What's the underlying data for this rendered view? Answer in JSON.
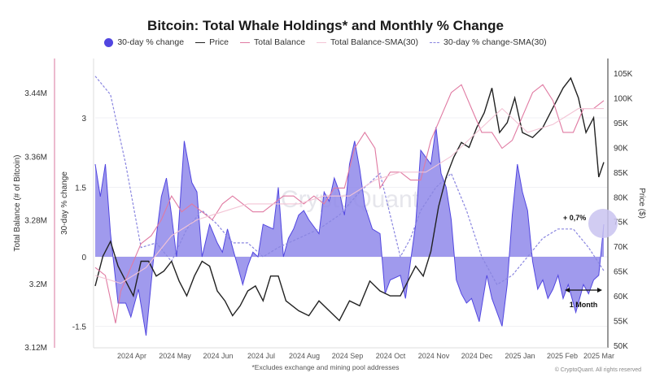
{
  "title": "Bitcoin: Total Whale Holdings* and Monthly % Change",
  "legend": [
    {
      "label": "30-day % change",
      "kind": "dot",
      "color": "#5146e0"
    },
    {
      "label": "Price",
      "kind": "line",
      "color": "#222222"
    },
    {
      "label": "Total Balance",
      "kind": "line",
      "color": "#e07aa2"
    },
    {
      "label": "Total Balance-SMA(30)",
      "kind": "line",
      "color": "#f3c4d5"
    },
    {
      "label": "30-day % change-SMA(30)",
      "kind": "dashed",
      "color": "#8a86e0"
    }
  ],
  "footnote": "*Excludes exchange and mining pool addresses",
  "copyright": "© CryptoQuant. All rights reserved",
  "watermark": "CryptoQuant",
  "annotations": {
    "change_label": "+ 0,7%",
    "period_label": "1 Month"
  },
  "chart_data": {
    "type": "line",
    "title": "Bitcoin: Total Whale Holdings* and Monthly % Change",
    "x_ticks": [
      "2024 Apr",
      "2024 May",
      "2024 Jun",
      "2024 Jul",
      "2024 Aug",
      "2024 Sep",
      "2024 Oct",
      "2024 Nov",
      "2024 Dec",
      "2025 Jan",
      "2025 Feb",
      "2025 Mar"
    ],
    "axes": {
      "balance": {
        "label": "Total Balance (# of Bitcoin)",
        "ticks": [
          "3.44M",
          "3.36M",
          "3.28M",
          "3.2M",
          "3.12M"
        ],
        "range": [
          3.12,
          3.47
        ],
        "unit": "M BTC"
      },
      "pct": {
        "label": "30-day % change",
        "ticks": [
          "3",
          "1.5",
          "0",
          "-1.5"
        ],
        "range": [
          -2.0,
          4.0
        ]
      },
      "price": {
        "label": "Price ($)",
        "ticks": [
          "105K",
          "100K",
          "95K",
          "90K",
          "85K",
          "80K",
          "75K",
          "70K",
          "65K",
          "60K",
          "55K",
          "50K"
        ],
        "range": [
          50,
          108
        ],
        "unit": "K USD"
      }
    },
    "x_range": [
      0,
      1
    ],
    "series": [
      {
        "name": "30-day % change",
        "axis": "pct",
        "type": "area",
        "color": "#5146e0",
        "x": [
          0,
          0.01,
          0.02,
          0.03,
          0.045,
          0.06,
          0.07,
          0.085,
          0.1,
          0.115,
          0.13,
          0.14,
          0.15,
          0.16,
          0.175,
          0.19,
          0.2,
          0.21,
          0.225,
          0.24,
          0.25,
          0.26,
          0.275,
          0.29,
          0.3,
          0.31,
          0.32,
          0.33,
          0.35,
          0.36,
          0.37,
          0.38,
          0.39,
          0.4,
          0.41,
          0.42,
          0.44,
          0.45,
          0.46,
          0.47,
          0.48,
          0.49,
          0.5,
          0.51,
          0.52,
          0.53,
          0.545,
          0.56,
          0.57,
          0.58,
          0.6,
          0.61,
          0.62,
          0.63,
          0.64,
          0.66,
          0.67,
          0.68,
          0.69,
          0.7,
          0.71,
          0.72,
          0.73,
          0.74,
          0.755,
          0.77,
          0.78,
          0.8,
          0.81,
          0.82,
          0.83,
          0.84,
          0.85,
          0.86,
          0.87,
          0.88,
          0.89,
          0.9,
          0.91,
          0.92,
          0.93,
          0.945,
          0.96,
          0.97,
          0.98,
          0.99,
          1.0
        ],
        "values": [
          2.0,
          1.3,
          2.0,
          0.5,
          -1.0,
          -1.0,
          -1.3,
          -0.7,
          -1.7,
          0.0,
          1.3,
          1.7,
          0.9,
          0.0,
          2.5,
          1.6,
          1.4,
          0.0,
          0.7,
          0.3,
          0.1,
          0.6,
          0.0,
          -0.6,
          -0.2,
          0.1,
          0.0,
          0.7,
          0.6,
          1.5,
          0.0,
          0.4,
          0.6,
          0.9,
          1.0,
          0.8,
          0.5,
          1.4,
          1.2,
          1.7,
          1.4,
          0.9,
          2.0,
          2.5,
          1.9,
          1.1,
          0.6,
          0.5,
          -0.8,
          -0.5,
          -0.4,
          -0.9,
          -0.1,
          0.7,
          2.3,
          2.0,
          2.8,
          1.8,
          1.5,
          0.8,
          -0.5,
          -0.8,
          -1.0,
          -0.9,
          -1.4,
          -0.4,
          -0.9,
          -1.5,
          -0.6,
          0.9,
          2.0,
          1.4,
          1.0,
          -0.1,
          -0.7,
          -0.5,
          -0.9,
          -0.7,
          -0.4,
          -0.9,
          -0.6,
          -1.2,
          -0.6,
          -0.8,
          -0.5,
          -0.4,
          0.7
        ]
      },
      {
        "name": "30-day % change-SMA(30)",
        "axis": "pct",
        "type": "dashed",
        "color": "#8a86e0",
        "x": [
          0,
          0.03,
          0.06,
          0.09,
          0.12,
          0.15,
          0.18,
          0.21,
          0.24,
          0.27,
          0.3,
          0.33,
          0.36,
          0.4,
          0.44,
          0.48,
          0.52,
          0.56,
          0.6,
          0.62,
          0.64,
          0.67,
          0.7,
          0.73,
          0.76,
          0.79,
          0.82,
          0.85,
          0.88,
          0.91,
          0.94,
          0.97,
          1.0
        ],
        "values": [
          3.9,
          3.5,
          2.0,
          0.2,
          0.3,
          -0.1,
          0.6,
          1.0,
          0.7,
          0.3,
          0.3,
          0.0,
          0.2,
          0.4,
          0.6,
          0.9,
          1.4,
          1.8,
          0.0,
          0.4,
          1.0,
          1.5,
          1.8,
          1.0,
          0.0,
          -0.6,
          -0.4,
          0.0,
          0.4,
          0.6,
          0.6,
          0.2,
          -0.3
        ]
      },
      {
        "name": "Price",
        "axis": "price",
        "type": "line",
        "color": "#222222",
        "x": [
          0,
          0.015,
          0.03,
          0.045,
          0.06,
          0.075,
          0.09,
          0.105,
          0.12,
          0.135,
          0.15,
          0.165,
          0.18,
          0.195,
          0.21,
          0.225,
          0.24,
          0.255,
          0.27,
          0.285,
          0.3,
          0.315,
          0.33,
          0.345,
          0.36,
          0.375,
          0.4,
          0.42,
          0.44,
          0.46,
          0.48,
          0.5,
          0.52,
          0.54,
          0.56,
          0.58,
          0.6,
          0.615,
          0.63,
          0.645,
          0.66,
          0.675,
          0.69,
          0.705,
          0.72,
          0.735,
          0.75,
          0.765,
          0.78,
          0.795,
          0.81,
          0.825,
          0.84,
          0.86,
          0.88,
          0.9,
          0.92,
          0.935,
          0.95,
          0.965,
          0.98,
          0.99,
          1.0
        ],
        "values": [
          62,
          68,
          71,
          66,
          63,
          60,
          67,
          67,
          64,
          65,
          67,
          63,
          60,
          64,
          67,
          66,
          61,
          59,
          56,
          58,
          61,
          62,
          59,
          64,
          64,
          59,
          57,
          56,
          59,
          57,
          55,
          59,
          58,
          63,
          61,
          60,
          60,
          63,
          66,
          64,
          69,
          78,
          84,
          88,
          91,
          90,
          94,
          97,
          102,
          93,
          95,
          100,
          93,
          92,
          94,
          98,
          102,
          104,
          100,
          93,
          96,
          84,
          87
        ]
      },
      {
        "name": "Total Balance",
        "axis": "balance",
        "type": "line",
        "color": "#e07aa2",
        "x": [
          0,
          0.02,
          0.04,
          0.05,
          0.07,
          0.09,
          0.11,
          0.13,
          0.15,
          0.17,
          0.19,
          0.21,
          0.23,
          0.25,
          0.27,
          0.29,
          0.31,
          0.33,
          0.35,
          0.37,
          0.39,
          0.41,
          0.43,
          0.45,
          0.47,
          0.49,
          0.51,
          0.53,
          0.55,
          0.56,
          0.58,
          0.6,
          0.62,
          0.64,
          0.66,
          0.68,
          0.7,
          0.72,
          0.74,
          0.76,
          0.78,
          0.8,
          0.82,
          0.84,
          0.86,
          0.88,
          0.9,
          0.92,
          0.94,
          0.96,
          0.98,
          1.0
        ],
        "values": [
          3.22,
          3.21,
          3.15,
          3.19,
          3.22,
          3.25,
          3.26,
          3.28,
          3.31,
          3.29,
          3.3,
          3.29,
          3.28,
          3.3,
          3.31,
          3.3,
          3.29,
          3.29,
          3.3,
          3.31,
          3.31,
          3.3,
          3.31,
          3.3,
          3.32,
          3.32,
          3.37,
          3.39,
          3.37,
          3.32,
          3.34,
          3.34,
          3.33,
          3.33,
          3.38,
          3.41,
          3.44,
          3.45,
          3.42,
          3.39,
          3.39,
          3.37,
          3.38,
          3.41,
          3.44,
          3.45,
          3.43,
          3.39,
          3.39,
          3.42,
          3.42,
          3.43
        ]
      },
      {
        "name": "Total Balance-SMA(30)",
        "axis": "balance",
        "type": "line",
        "color": "#f3c4d5",
        "x": [
          0,
          0.05,
          0.1,
          0.15,
          0.2,
          0.25,
          0.3,
          0.35,
          0.4,
          0.45,
          0.5,
          0.55,
          0.6,
          0.65,
          0.7,
          0.75,
          0.8,
          0.85,
          0.9,
          0.95,
          1.0
        ],
        "values": [
          3.21,
          3.2,
          3.22,
          3.26,
          3.28,
          3.29,
          3.3,
          3.3,
          3.3,
          3.31,
          3.31,
          3.33,
          3.34,
          3.34,
          3.36,
          3.39,
          3.42,
          3.39,
          3.4,
          3.42,
          3.42
        ]
      }
    ]
  }
}
